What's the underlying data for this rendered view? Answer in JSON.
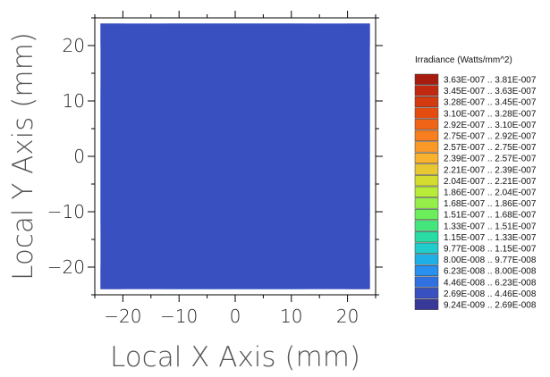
{
  "chart_data": {
    "type": "heatmap",
    "xlabel": "Local X Axis (mm)",
    "ylabel": "Local Y Axis (mm)",
    "xlim": [
      -25,
      25
    ],
    "ylim": [
      -25,
      25
    ],
    "x_ticks": [
      -20,
      -10,
      0,
      10,
      20
    ],
    "y_ticks": [
      -20,
      -10,
      0,
      10,
      20
    ],
    "x_tick_labels": [
      "−20",
      "−10",
      "0",
      "10",
      "20"
    ],
    "y_tick_labels": [
      "−20",
      "−10",
      "0",
      "10",
      "20"
    ],
    "detector_extent": {
      "x": [
        -24,
        24
      ],
      "y": [
        -24,
        24
      ]
    },
    "legend_title": "Irradiance (Watts/mm^2)",
    "legend_placement": "right",
    "bins": [
      {
        "low": "3.63E-007",
        "high": "3.81E-007",
        "label": "3.63E-007 .. 3.81E-007",
        "color": "#a81c10"
      },
      {
        "low": "3.45E-007",
        "high": "3.63E-007",
        "label": "3.45E-007 .. 3.63E-007",
        "color": "#c02810"
      },
      {
        "low": "3.28E-007",
        "high": "3.45E-007",
        "label": "3.28E-007 .. 3.45E-007",
        "color": "#d43a10"
      },
      {
        "low": "3.10E-007",
        "high": "3.28E-007",
        "label": "3.10E-007 .. 3.28E-007",
        "color": "#e44c10"
      },
      {
        "low": "2.92E-007",
        "high": "3.10E-007",
        "label": "2.92E-007 .. 3.10E-007",
        "color": "#f06418"
      },
      {
        "low": "2.75E-007",
        "high": "2.92E-007",
        "label": "2.75E-007 .. 2.92E-007",
        "color": "#f87e20"
      },
      {
        "low": "2.57E-007",
        "high": "2.75E-007",
        "label": "2.57E-007 .. 2.75E-007",
        "color": "#fa9828"
      },
      {
        "low": "2.39E-007",
        "high": "2.57E-007",
        "label": "2.39E-007 .. 2.57E-007",
        "color": "#f8b230"
      },
      {
        "low": "2.21E-007",
        "high": "2.39E-007",
        "label": "2.21E-007 .. 2.39E-007",
        "color": "#e8c830"
      },
      {
        "low": "2.04E-007",
        "high": "2.21E-007",
        "label": "2.04E-007 .. 2.21E-007",
        "color": "#d4dc30"
      },
      {
        "low": "1.86E-007",
        "high": "2.04E-007",
        "label": "1.86E-007 .. 2.04E-007",
        "color": "#b8ec38"
      },
      {
        "low": "1.68E-007",
        "high": "1.86E-007",
        "label": "1.68E-007 .. 1.86E-007",
        "color": "#94f048"
      },
      {
        "low": "1.51E-007",
        "high": "1.68E-007",
        "label": "1.51E-007 .. 1.68E-007",
        "color": "#6cee5c"
      },
      {
        "low": "1.33E-007",
        "high": "1.51E-007",
        "label": "1.33E-007 .. 1.51E-007",
        "color": "#44e67c"
      },
      {
        "low": "1.15E-007",
        "high": "1.33E-007",
        "label": "1.15E-007 .. 1.33E-007",
        "color": "#28dca4"
      },
      {
        "low": "9.77E-008",
        "high": "1.15E-007",
        "label": "9.77E-008 .. 1.15E-007",
        "color": "#20cccc"
      },
      {
        "low": "8.00E-008",
        "high": "9.77E-008",
        "label": "8.00E-008 .. 9.77E-008",
        "color": "#20b0e8"
      },
      {
        "low": "6.23E-008",
        "high": "8.00E-008",
        "label": "6.23E-008 .. 8.00E-008",
        "color": "#2890f0"
      },
      {
        "low": "4.46E-008",
        "high": "6.23E-008",
        "label": "4.46E-008 .. 6.23E-008",
        "color": "#3070e0"
      },
      {
        "low": "2.69E-008",
        "high": "4.46E-008",
        "label": "2.69E-008 .. 4.46E-008",
        "color": "#3850c0"
      },
      {
        "low": "9.24E-009",
        "high": "2.69E-008",
        "label": "9.24E-009 .. 2.69E-008",
        "color": "#383898"
      }
    ],
    "grid": false
  }
}
